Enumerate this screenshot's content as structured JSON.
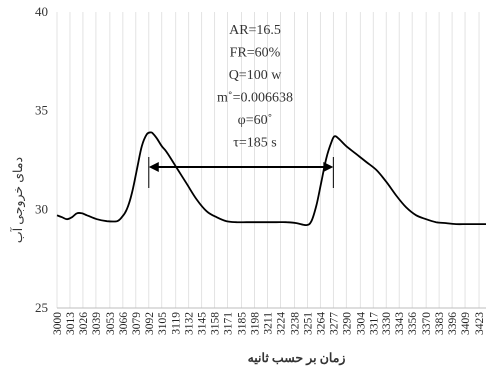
{
  "chart_data": {
    "type": "line",
    "ylabel": "دمای خروجی آب",
    "xlabel": "زمان بر حسب ثانیه",
    "ylim": [
      25,
      40
    ],
    "yticks": [
      25,
      30,
      35,
      40
    ],
    "grid": "vertical lines at each x category",
    "legend": "none",
    "annotations": [
      "AR=16.5",
      "FR=60%",
      "Q=100 w",
      "m˚=0.006638",
      "φ=60˚",
      "τ=185 s"
    ],
    "period_arrow": {
      "from": 3092,
      "to": 3277,
      "label": "τ=185 s"
    },
    "x_tick_labels": [
      "3000",
      "3013",
      "3026",
      "3039",
      "3053",
      "3066",
      "3079",
      "3092",
      "3105",
      "3119",
      "3132",
      "3145",
      "3158",
      "3171",
      "3185",
      "3198",
      "3211",
      "3224",
      "3238",
      "3251",
      "3264",
      "3277",
      "3290",
      "3304",
      "3317",
      "3330",
      "3343",
      "3356",
      "3370",
      "3383",
      "3396",
      "3409",
      "3423"
    ],
    "x_start": 3000,
    "x_end": 3430,
    "series": [
      {
        "line_color": "#000000",
        "x": [
          3000,
          3005,
          3010,
          3015,
          3020,
          3025,
          3030,
          3040,
          3050,
          3060,
          3065,
          3070,
          3075,
          3080,
          3085,
          3090,
          3094,
          3096,
          3100,
          3105,
          3110,
          3120,
          3130,
          3140,
          3150,
          3160,
          3170,
          3180,
          3190,
          3200,
          3210,
          3220,
          3230,
          3240,
          3250,
          3255,
          3260,
          3265,
          3270,
          3275,
          3278,
          3282,
          3290,
          3300,
          3310,
          3320,
          3330,
          3340,
          3350,
          3360,
          3370,
          3380,
          3390,
          3400,
          3410,
          3420,
          3430
        ],
        "values": [
          29.7,
          29.6,
          29.5,
          29.6,
          29.8,
          29.8,
          29.7,
          29.5,
          29.4,
          29.4,
          29.6,
          30.0,
          30.8,
          32.0,
          33.2,
          33.8,
          33.9,
          33.85,
          33.6,
          33.2,
          32.9,
          32.1,
          31.3,
          30.5,
          29.9,
          29.6,
          29.4,
          29.35,
          29.35,
          29.35,
          29.35,
          29.35,
          29.35,
          29.3,
          29.2,
          29.4,
          30.2,
          31.4,
          32.6,
          33.4,
          33.7,
          33.6,
          33.2,
          32.8,
          32.4,
          32.0,
          31.4,
          30.7,
          30.1,
          29.7,
          29.5,
          29.35,
          29.3,
          29.25,
          29.25,
          29.25,
          29.25
        ]
      }
    ]
  }
}
